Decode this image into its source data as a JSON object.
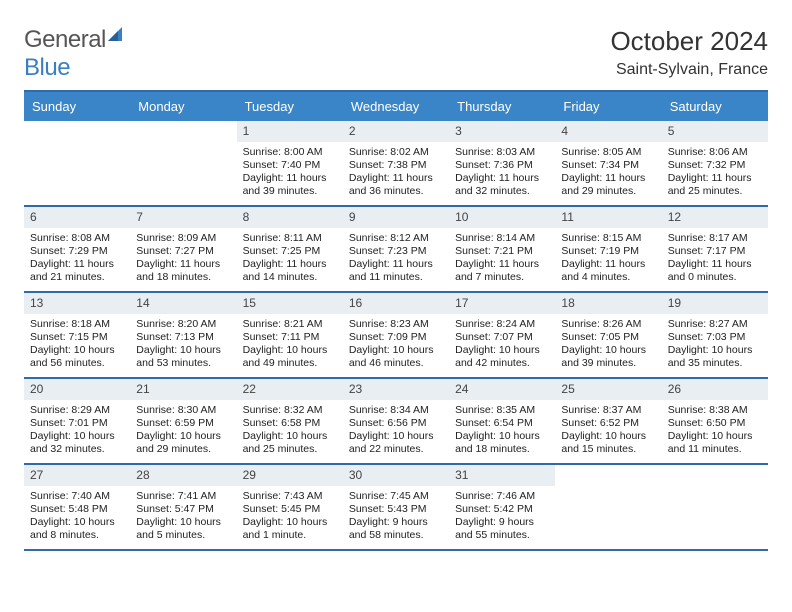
{
  "brand": {
    "part1": "General",
    "part2": "Blue"
  },
  "title": "October 2024",
  "location": "Saint-Sylvain, France",
  "colors": {
    "header_bg": "#3a85c7",
    "header_text": "#ffffff",
    "rule": "#2f6aa9",
    "daynum_bg": "#e9eef3",
    "text": "#222222",
    "brand_gray": "#555555",
    "brand_blue": "#3a7fc2",
    "background": "#ffffff"
  },
  "weekdays": [
    "Sunday",
    "Monday",
    "Tuesday",
    "Wednesday",
    "Thursday",
    "Friday",
    "Saturday"
  ],
  "weeks": [
    [
      null,
      null,
      {
        "n": 1,
        "sunrise": "8:00 AM",
        "sunset": "7:40 PM",
        "daylight": "11 hours and 39 minutes."
      },
      {
        "n": 2,
        "sunrise": "8:02 AM",
        "sunset": "7:38 PM",
        "daylight": "11 hours and 36 minutes."
      },
      {
        "n": 3,
        "sunrise": "8:03 AM",
        "sunset": "7:36 PM",
        "daylight": "11 hours and 32 minutes."
      },
      {
        "n": 4,
        "sunrise": "8:05 AM",
        "sunset": "7:34 PM",
        "daylight": "11 hours and 29 minutes."
      },
      {
        "n": 5,
        "sunrise": "8:06 AM",
        "sunset": "7:32 PM",
        "daylight": "11 hours and 25 minutes."
      }
    ],
    [
      {
        "n": 6,
        "sunrise": "8:08 AM",
        "sunset": "7:29 PM",
        "daylight": "11 hours and 21 minutes."
      },
      {
        "n": 7,
        "sunrise": "8:09 AM",
        "sunset": "7:27 PM",
        "daylight": "11 hours and 18 minutes."
      },
      {
        "n": 8,
        "sunrise": "8:11 AM",
        "sunset": "7:25 PM",
        "daylight": "11 hours and 14 minutes."
      },
      {
        "n": 9,
        "sunrise": "8:12 AM",
        "sunset": "7:23 PM",
        "daylight": "11 hours and 11 minutes."
      },
      {
        "n": 10,
        "sunrise": "8:14 AM",
        "sunset": "7:21 PM",
        "daylight": "11 hours and 7 minutes."
      },
      {
        "n": 11,
        "sunrise": "8:15 AM",
        "sunset": "7:19 PM",
        "daylight": "11 hours and 4 minutes."
      },
      {
        "n": 12,
        "sunrise": "8:17 AM",
        "sunset": "7:17 PM",
        "daylight": "11 hours and 0 minutes."
      }
    ],
    [
      {
        "n": 13,
        "sunrise": "8:18 AM",
        "sunset": "7:15 PM",
        "daylight": "10 hours and 56 minutes."
      },
      {
        "n": 14,
        "sunrise": "8:20 AM",
        "sunset": "7:13 PM",
        "daylight": "10 hours and 53 minutes."
      },
      {
        "n": 15,
        "sunrise": "8:21 AM",
        "sunset": "7:11 PM",
        "daylight": "10 hours and 49 minutes."
      },
      {
        "n": 16,
        "sunrise": "8:23 AM",
        "sunset": "7:09 PM",
        "daylight": "10 hours and 46 minutes."
      },
      {
        "n": 17,
        "sunrise": "8:24 AM",
        "sunset": "7:07 PM",
        "daylight": "10 hours and 42 minutes."
      },
      {
        "n": 18,
        "sunrise": "8:26 AM",
        "sunset": "7:05 PM",
        "daylight": "10 hours and 39 minutes."
      },
      {
        "n": 19,
        "sunrise": "8:27 AM",
        "sunset": "7:03 PM",
        "daylight": "10 hours and 35 minutes."
      }
    ],
    [
      {
        "n": 20,
        "sunrise": "8:29 AM",
        "sunset": "7:01 PM",
        "daylight": "10 hours and 32 minutes."
      },
      {
        "n": 21,
        "sunrise": "8:30 AM",
        "sunset": "6:59 PM",
        "daylight": "10 hours and 29 minutes."
      },
      {
        "n": 22,
        "sunrise": "8:32 AM",
        "sunset": "6:58 PM",
        "daylight": "10 hours and 25 minutes."
      },
      {
        "n": 23,
        "sunrise": "8:34 AM",
        "sunset": "6:56 PM",
        "daylight": "10 hours and 22 minutes."
      },
      {
        "n": 24,
        "sunrise": "8:35 AM",
        "sunset": "6:54 PM",
        "daylight": "10 hours and 18 minutes."
      },
      {
        "n": 25,
        "sunrise": "8:37 AM",
        "sunset": "6:52 PM",
        "daylight": "10 hours and 15 minutes."
      },
      {
        "n": 26,
        "sunrise": "8:38 AM",
        "sunset": "6:50 PM",
        "daylight": "10 hours and 11 minutes."
      }
    ],
    [
      {
        "n": 27,
        "sunrise": "7:40 AM",
        "sunset": "5:48 PM",
        "daylight": "10 hours and 8 minutes."
      },
      {
        "n": 28,
        "sunrise": "7:41 AM",
        "sunset": "5:47 PM",
        "daylight": "10 hours and 5 minutes."
      },
      {
        "n": 29,
        "sunrise": "7:43 AM",
        "sunset": "5:45 PM",
        "daylight": "10 hours and 1 minute."
      },
      {
        "n": 30,
        "sunrise": "7:45 AM",
        "sunset": "5:43 PM",
        "daylight": "9 hours and 58 minutes."
      },
      {
        "n": 31,
        "sunrise": "7:46 AM",
        "sunset": "5:42 PM",
        "daylight": "9 hours and 55 minutes."
      },
      null,
      null
    ]
  ],
  "labels": {
    "sunrise": "Sunrise: ",
    "sunset": "Sunset: ",
    "daylight": "Daylight: "
  }
}
